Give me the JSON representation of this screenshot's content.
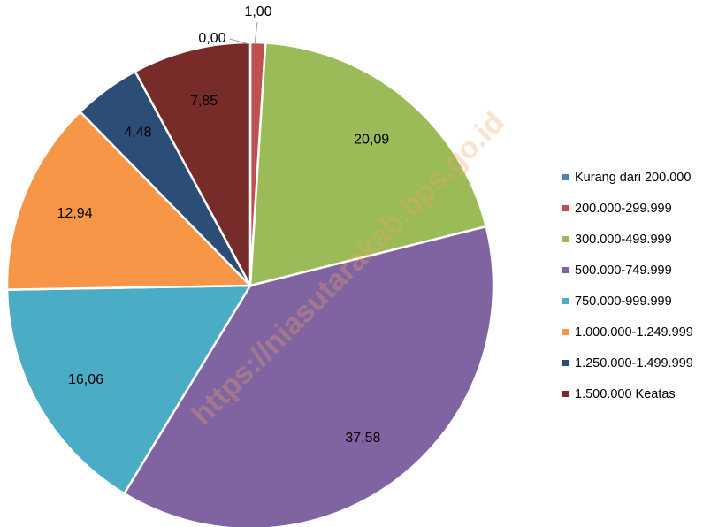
{
  "chart_data": {
    "type": "pie",
    "categories": [
      "Kurang dari 200.000",
      "200.000-299.999",
      "300.000-499.999",
      "500.000-749.999",
      "750.000-999.999",
      "1.000.000-1.249.999",
      "1.250.000-1.499.999",
      "1.500.000 Keatas"
    ],
    "values": [
      0.0,
      1.0,
      20.09,
      37.58,
      16.06,
      12.94,
      4.48,
      7.85
    ],
    "value_labels": [
      "0,00",
      "1,00",
      "20,09",
      "37,58",
      "16,06",
      "12,94",
      "4,48",
      "7,85"
    ],
    "colors": [
      "#4f81bd",
      "#c0504d",
      "#9bbb59",
      "#8064a2",
      "#4bacc6",
      "#f79646",
      "#2c4d75",
      "#772c2a"
    ],
    "legend": "right",
    "watermark": "https://niasutarakab.bps.go.id"
  }
}
